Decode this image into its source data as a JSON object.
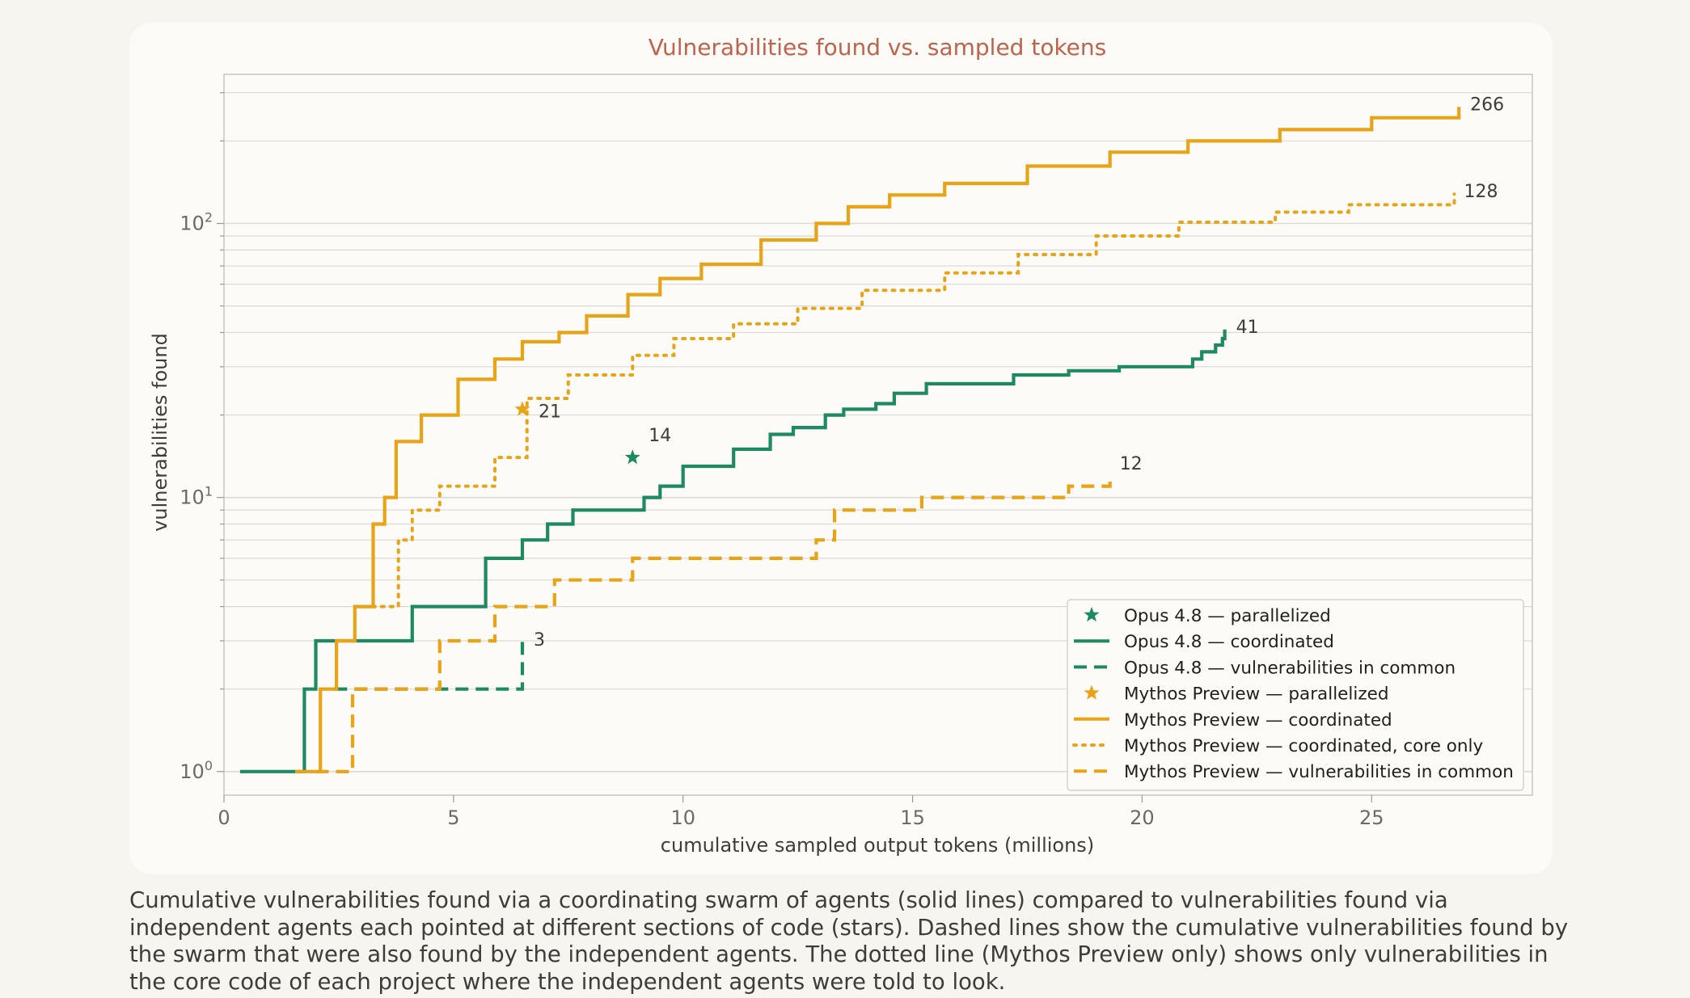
{
  "chart_data": {
    "type": "line",
    "title": "Vulnerabilities found vs. sampled tokens",
    "xlabel": "cumulative sampled output tokens (millions)",
    "ylabel": "vulnerabilities found",
    "xlim": [
      0,
      28.5
    ],
    "ylim": [
      0.82,
      350
    ],
    "yscale": "log",
    "xticks": [
      0,
      5,
      10,
      15,
      20,
      25
    ],
    "yticks": [
      {
        "value": 1,
        "base": "10",
        "exp": "0"
      },
      {
        "value": 10,
        "base": "10",
        "exp": "1"
      },
      {
        "value": 100,
        "base": "10",
        "exp": "2"
      }
    ],
    "grid": true,
    "legend_position": "lower-right",
    "colors": {
      "opus": "#1e8a64",
      "mythos": "#e8a317",
      "title": "#c0634d"
    },
    "series": [
      {
        "name": "Opus 4.8 — parallelized",
        "type": "star",
        "color": "#1e8a64",
        "points": [
          {
            "x": 8.9,
            "y": 14
          }
        ],
        "end_label": "14"
      },
      {
        "name": "Opus 4.8 — coordinated",
        "type": "step",
        "dash": "solid",
        "color": "#1e8a64",
        "x": [
          0.35,
          1.75,
          2.0,
          4.1,
          5.7,
          6.5,
          7.05,
          7.6,
          9.15,
          9.5,
          10.0,
          11.1,
          11.9,
          12.4,
          13.1,
          13.5,
          14.2,
          14.6,
          15.3,
          17.2,
          18.4,
          19.5,
          21.1,
          21.3,
          21.6,
          21.75,
          21.8
        ],
        "y": [
          1,
          2,
          3,
          4,
          6,
          7,
          8,
          9,
          10,
          11,
          13,
          15,
          17,
          18,
          20,
          21,
          22,
          24,
          26,
          28,
          29,
          30,
          32,
          34,
          36,
          38,
          41
        ],
        "end_label": "41"
      },
      {
        "name": "Opus 4.8 — vulnerabilities in common",
        "type": "step",
        "dash": "dashed",
        "color": "#1e8a64",
        "x": [
          2.4,
          6.5,
          6.5
        ],
        "y": [
          2,
          2,
          3
        ],
        "end_label": "3"
      },
      {
        "name": "Mythos Preview — parallelized",
        "type": "star",
        "color": "#e8a317",
        "points": [
          {
            "x": 6.5,
            "y": 21
          }
        ],
        "end_label": "21"
      },
      {
        "name": "Mythos Preview — coordinated",
        "type": "step",
        "dash": "solid",
        "color": "#e8a317",
        "x": [
          1.55,
          2.1,
          2.45,
          2.85,
          3.25,
          3.5,
          3.75,
          4.3,
          5.1,
          5.9,
          6.5,
          7.3,
          7.9,
          8.8,
          9.5,
          10.4,
          11.7,
          12.9,
          13.6,
          14.5,
          15.7,
          17.5,
          19.3,
          21.0,
          23.0,
          25.0,
          26.9
        ],
        "y": [
          1,
          2,
          3,
          4,
          8,
          10,
          16,
          20,
          27,
          32,
          37,
          40,
          46,
          55,
          63,
          71,
          87,
          100,
          115,
          127,
          140,
          162,
          182,
          200,
          220,
          243,
          266
        ],
        "end_label": "266"
      },
      {
        "name": "Mythos Preview — coordinated, core only",
        "type": "step",
        "dash": "dotted",
        "color": "#e8a317",
        "x": [
          2.85,
          3.8,
          4.1,
          4.7,
          5.9,
          6.6,
          7.5,
          8.9,
          9.8,
          11.1,
          12.5,
          13.9,
          15.7,
          17.3,
          19.0,
          20.8,
          22.9,
          24.5,
          26.8
        ],
        "y": [
          4,
          7,
          9,
          11,
          14,
          23,
          28,
          33,
          38,
          43,
          49,
          57,
          66,
          77,
          90,
          101,
          110,
          117,
          128
        ],
        "end_label": "128"
      },
      {
        "name": "Mythos Preview — vulnerabilities in common",
        "type": "step",
        "dash": "dashed",
        "color": "#e8a317",
        "x": [
          2.0,
          2.8,
          4.7,
          5.9,
          7.2,
          8.9,
          12.9,
          13.3,
          15.2,
          18.4,
          19.3
        ],
        "y": [
          1,
          2,
          3,
          4,
          5,
          6,
          7,
          9,
          10,
          11,
          12
        ],
        "end_label": "12"
      }
    ]
  },
  "caption": "Cumulative vulnerabilities found via a coordinating swarm of agents (solid lines) compared to vulnerabilities found via independent agents each pointed at different sections of code (stars). Dashed lines show the cumulative vulnerabilities found by the swarm that were also found by the independent agents. The dotted line (Mythos Preview only) shows only vulnerabilities in the core code of each project where the independent agents were told to look."
}
